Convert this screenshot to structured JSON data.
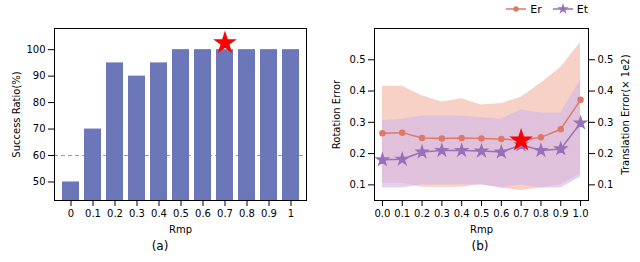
{
  "chart_data": [
    {
      "type": "bar",
      "title": "(a)",
      "x_label": "Rmp",
      "y_label": "Success Ratio(%)",
      "categories": [
        "0",
        "0.1",
        "0.2",
        "0.3",
        "0.4",
        "0.5",
        "0.6",
        "0.7",
        "0.8",
        "0.9",
        "1"
      ],
      "values": [
        50,
        70,
        95,
        90,
        95,
        100,
        100,
        100,
        100,
        100,
        100
      ],
      "color": "#6b77b8",
      "ylim": [
        43,
        108
      ],
      "yticks": [
        50,
        60,
        70,
        80,
        90,
        100
      ],
      "reference_lines": [
        {
          "y": 60,
          "color": "#aaa060",
          "line_style": "dashed"
        }
      ],
      "markers": [
        {
          "x": "0.7",
          "y": 102.5,
          "color": "red",
          "marker": "star"
        }
      ]
    },
    {
      "type": "line",
      "title": "(b)",
      "x_label": "Rmp",
      "y_label": "Rotation Error",
      "y2_label": "Translation Error(× 1e2)",
      "x": [
        0.0,
        0.1,
        0.2,
        0.3,
        0.4,
        0.5,
        0.6,
        0.7,
        0.8,
        0.9,
        1.0
      ],
      "xlim": [
        -0.04,
        1.04
      ],
      "xticks": [
        {
          "value": 0,
          "label": "0.0"
        },
        0.1,
        0.2,
        0.3,
        0.4,
        0.5,
        0.6,
        0.7,
        0.8,
        0.9,
        {
          "value": 1,
          "label": "1.0"
        }
      ],
      "ylim": [
        0.05,
        0.6
      ],
      "yticks": [
        0.1,
        0.2,
        0.3,
        0.4,
        0.5
      ],
      "y2lim": [
        0.05,
        0.6
      ],
      "y2ticks": [
        0.1,
        0.2,
        0.3,
        0.4,
        0.5
      ],
      "legend": "upper right",
      "series": [
        {
          "name": "Er",
          "color": "#e07868",
          "fill_color": "#f2b8a8",
          "marker": "circle",
          "values": [
            0.265,
            0.267,
            0.25,
            0.248,
            0.25,
            0.248,
            0.247,
            0.242,
            0.252,
            0.278,
            0.372
          ],
          "upper": [
            0.415,
            0.415,
            0.385,
            0.365,
            0.375,
            0.355,
            0.36,
            0.38,
            0.425,
            0.475,
            0.555
          ],
          "lower": [
            0.105,
            0.105,
            0.092,
            0.092,
            0.092,
            0.1,
            0.09,
            0.082,
            0.09,
            0.1,
            0.135
          ]
        },
        {
          "name": "Et",
          "color": "#9870b8",
          "fill_color": "#d4b8e8",
          "marker": "star",
          "values": [
            0.18,
            0.182,
            0.205,
            0.21,
            0.21,
            0.208,
            0.205,
            0.228,
            0.21,
            0.215,
            0.298
          ],
          "upper": [
            0.305,
            0.31,
            0.32,
            0.32,
            0.32,
            0.315,
            0.31,
            0.34,
            0.33,
            0.33,
            0.435
          ],
          "lower": [
            0.09,
            0.09,
            0.1,
            0.1,
            0.1,
            0.1,
            0.09,
            0.1,
            0.09,
            0.09,
            0.125
          ]
        }
      ],
      "markers": [
        {
          "x": 0.7,
          "y": 0.242,
          "color": "red",
          "marker": "star"
        }
      ]
    }
  ]
}
